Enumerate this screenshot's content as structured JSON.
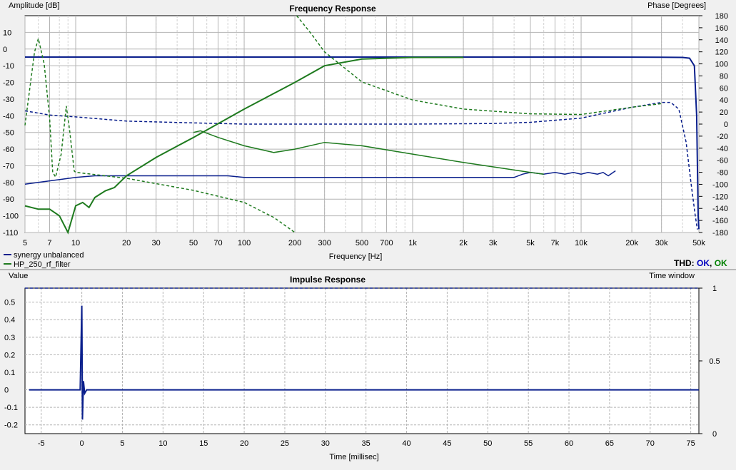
{
  "thd": {
    "label": "THD:",
    "status_1": "OK",
    "separator": ",",
    "status_2": "OK"
  },
  "colors": {
    "blue": "#0a1f8c",
    "green": "#1e7a1e",
    "grid": "#c8c8c8",
    "plot_bg": "#ffffff"
  },
  "chart_data": [
    {
      "type": "line",
      "title": "Frequency Response",
      "xlabel": "Frequency [Hz]",
      "ylabel": "Amplitude [dB]",
      "y2label": "Phase [Degrees]",
      "xscale": "log",
      "xlim": [
        5,
        50000
      ],
      "ylim": [
        -110,
        20
      ],
      "y2lim": [
        -180,
        180
      ],
      "grid": true,
      "legend_position": "bottom-left",
      "x_ticks": [
        {
          "v": 5,
          "label": "5"
        },
        {
          "v": 7,
          "label": "7"
        },
        {
          "v": 10,
          "label": "10"
        },
        {
          "v": 20,
          "label": "20"
        },
        {
          "v": 30,
          "label": "30"
        },
        {
          "v": 50,
          "label": "50"
        },
        {
          "v": 70,
          "label": "70"
        },
        {
          "v": 100,
          "label": "100"
        },
        {
          "v": 200,
          "label": "200"
        },
        {
          "v": 300,
          "label": "300"
        },
        {
          "v": 500,
          "label": "500"
        },
        {
          "v": 700,
          "label": "700"
        },
        {
          "v": 1000,
          "label": "1k"
        },
        {
          "v": 2000,
          "label": "2k"
        },
        {
          "v": 3000,
          "label": "3k"
        },
        {
          "v": 5000,
          "label": "5k"
        },
        {
          "v": 7000,
          "label": "7k"
        },
        {
          "v": 10000,
          "label": "10k"
        },
        {
          "v": 20000,
          "label": "20k"
        },
        {
          "v": 30000,
          "label": "30k"
        },
        {
          "v": 50000,
          "label": "50k"
        }
      ],
      "y_ticks": [
        {
          "v": 10,
          "label": "10"
        },
        {
          "v": 0,
          "label": "0"
        },
        {
          "v": -10,
          "label": "-10"
        },
        {
          "v": -20,
          "label": "-20"
        },
        {
          "v": -30,
          "label": "-30"
        },
        {
          "v": -40,
          "label": "-40"
        },
        {
          "v": -50,
          "label": "-50"
        },
        {
          "v": -60,
          "label": "-60"
        },
        {
          "v": -70,
          "label": "-70"
        },
        {
          "v": -80,
          "label": "-80"
        },
        {
          "v": -90,
          "label": "-90"
        },
        {
          "v": -100,
          "label": "-100"
        },
        {
          "v": -110,
          "label": "-110"
        }
      ],
      "y2_ticks": [
        {
          "v": 180,
          "label": "180"
        },
        {
          "v": 160,
          "label": "160"
        },
        {
          "v": 140,
          "label": "140"
        },
        {
          "v": 120,
          "label": "120"
        },
        {
          "v": 100,
          "label": "100"
        },
        {
          "v": 80,
          "label": "80"
        },
        {
          "v": 60,
          "label": "60"
        },
        {
          "v": 40,
          "label": "40"
        },
        {
          "v": 20,
          "label": "20"
        },
        {
          "v": 0,
          "label": "0"
        },
        {
          "v": -20,
          "label": "-20"
        },
        {
          "v": -40,
          "label": "-40"
        },
        {
          "v": -60,
          "label": "-60"
        },
        {
          "v": -80,
          "label": "-80"
        },
        {
          "v": -100,
          "label": "-100"
        },
        {
          "v": -120,
          "label": "-120"
        },
        {
          "v": -140,
          "label": "-140"
        },
        {
          "v": -160,
          "label": "-160"
        },
        {
          "v": -180,
          "label": "-180"
        }
      ],
      "series": [
        {
          "name": "synergy unbalanced",
          "color": "#0a1f8c",
          "magnitude_db": [
            [
              5,
              -4.8
            ],
            [
              1000,
              -4.8
            ],
            [
              10000,
              -4.8
            ],
            [
              30000,
              -4.9
            ],
            [
              40000,
              -5.0
            ],
            [
              44000,
              -5.5
            ],
            [
              47000,
              -10
            ],
            [
              48500,
              -40
            ],
            [
              49500,
              -100
            ],
            [
              50000,
              -108
            ]
          ],
          "phase_deg": [
            [
              5,
              22
            ],
            [
              7,
              15
            ],
            [
              10,
              12
            ],
            [
              20,
              5
            ],
            [
              50,
              2
            ],
            [
              100,
              0
            ],
            [
              300,
              0
            ],
            [
              1000,
              0
            ],
            [
              3000,
              1
            ],
            [
              5000,
              3
            ],
            [
              10000,
              10
            ],
            [
              20000,
              28
            ],
            [
              30000,
              36
            ],
            [
              34000,
              36
            ],
            [
              38000,
              25
            ],
            [
              42000,
              -30
            ],
            [
              45000,
              -100
            ],
            [
              47500,
              -150
            ],
            [
              49000,
              -175
            ]
          ],
          "impulse": [
            [
              -6.5,
              0
            ],
            [
              -0.2,
              0
            ],
            [
              0,
              0.48
            ],
            [
              0.08,
              -0.17
            ],
            [
              0.2,
              0.05
            ],
            [
              0.35,
              -0.02
            ],
            [
              0.6,
              0
            ],
            [
              76,
              0
            ]
          ]
        },
        {
          "name": "HP_250_rf_filter",
          "color": "#1e7a1e",
          "magnitude_db": [
            [
              5,
              -94
            ],
            [
              6,
              -96
            ],
            [
              7,
              -96
            ],
            [
              8,
              -100
            ],
            [
              9,
              -110
            ],
            [
              10,
              -94
            ],
            [
              11,
              -92
            ],
            [
              12,
              -95
            ],
            [
              13,
              -89
            ],
            [
              15,
              -85
            ],
            [
              17,
              -83
            ],
            [
              20,
              -76
            ],
            [
              30,
              -65
            ],
            [
              50,
              -53
            ],
            [
              100,
              -36
            ],
            [
              200,
              -20
            ],
            [
              300,
              -10
            ],
            [
              500,
              -6
            ],
            [
              1000,
              -5
            ],
            [
              2000,
              -5
            ]
          ],
          "phase_deg": [
            [
              5,
              -2
            ],
            [
              5.7,
              120
            ],
            [
              6,
              142
            ],
            [
              6.5,
              100
            ],
            [
              7,
              10
            ],
            [
              7.3,
              -80
            ],
            [
              7.6,
              -88
            ],
            [
              8.2,
              -50
            ],
            [
              8.8,
              30
            ],
            [
              9.2,
              -10
            ],
            [
              9.8,
              -78
            ],
            [
              10,
              -80
            ],
            [
              20,
              -90
            ],
            [
              50,
              -110
            ],
            [
              100,
              -130
            ],
            [
              150,
              -155
            ],
            [
              200,
              -180
            ]
          ],
          "phase_deg_2": [
            [
              205,
              180
            ],
            [
              250,
              150
            ],
            [
              300,
              120
            ],
            [
              500,
              70
            ],
            [
              1000,
              40
            ],
            [
              2000,
              25
            ],
            [
              5000,
              17
            ],
            [
              10000,
              16
            ],
            [
              20000,
              28
            ],
            [
              30000,
              34
            ]
          ],
          "excess_group": [
            [
              50,
              -50
            ],
            [
              55,
              -49
            ],
            [
              70,
              -53
            ],
            [
              100,
              -58
            ],
            [
              150,
              -62
            ],
            [
              200,
              -60
            ],
            [
              300,
              -56
            ],
            [
              500,
              -58
            ],
            [
              1000,
              -63
            ],
            [
              2000,
              -68
            ],
            [
              5000,
              -74
            ],
            [
              6000,
              -75
            ]
          ]
        }
      ],
      "noise_trace": {
        "color": "#0a1f8c",
        "points": [
          [
            5,
            -81
          ],
          [
            10,
            -77
          ],
          [
            13,
            -76
          ],
          [
            80,
            -76
          ],
          [
            100,
            -77
          ],
          [
            4000,
            -77
          ],
          [
            4500,
            -75
          ],
          [
            5000,
            -74
          ],
          [
            6000,
            -75
          ],
          [
            7000,
            -74
          ],
          [
            8000,
            -75
          ],
          [
            9000,
            -74
          ],
          [
            10000,
            -75
          ],
          [
            11000,
            -74
          ],
          [
            12500,
            -75
          ],
          [
            13500,
            -74
          ],
          [
            14500,
            -76
          ],
          [
            16000,
            -73
          ]
        ]
      }
    },
    {
      "type": "line",
      "title": "Impulse Response",
      "xlabel": "Time [millisec]",
      "ylabel": "Value",
      "y2label": "Time window",
      "xlim": [
        -7,
        76
      ],
      "ylim": [
        -0.25,
        0.58
      ],
      "y2lim": [
        0,
        1
      ],
      "grid": true,
      "x_ticks": [
        {
          "v": -5,
          "label": "-5"
        },
        {
          "v": 0,
          "label": "0"
        },
        {
          "v": 5,
          "label": "5"
        },
        {
          "v": 10,
          "label": "10"
        },
        {
          "v": 15,
          "label": "15"
        },
        {
          "v": 20,
          "label": "20"
        },
        {
          "v": 25,
          "label": "25"
        },
        {
          "v": 30,
          "label": "30"
        },
        {
          "v": 35,
          "label": "35"
        },
        {
          "v": 40,
          "label": "40"
        },
        {
          "v": 45,
          "label": "45"
        },
        {
          "v": 50,
          "label": "50"
        },
        {
          "v": 55,
          "label": "55"
        },
        {
          "v": 60,
          "label": "60"
        },
        {
          "v": 65,
          "label": "65"
        },
        {
          "v": 70,
          "label": "70"
        },
        {
          "v": 75,
          "label": "75"
        }
      ],
      "y_ticks": [
        {
          "v": 0.5,
          "label": "0.5"
        },
        {
          "v": 0.4,
          "label": "0.4"
        },
        {
          "v": 0.3,
          "label": "0.3"
        },
        {
          "v": 0.2,
          "label": "0.2"
        },
        {
          "v": 0.1,
          "label": "0.1"
        },
        {
          "v": 0,
          "label": "0"
        },
        {
          "v": -0.1,
          "label": "-0.1"
        },
        {
          "v": -0.2,
          "label": "-0.2"
        }
      ],
      "y2_ticks": [
        {
          "v": 1,
          "label": "1"
        },
        {
          "v": 0.5,
          "label": "0.5"
        },
        {
          "v": 0,
          "label": "0"
        }
      ],
      "time_window": [
        [
          -7,
          1
        ],
        [
          76,
          1
        ]
      ]
    }
  ]
}
